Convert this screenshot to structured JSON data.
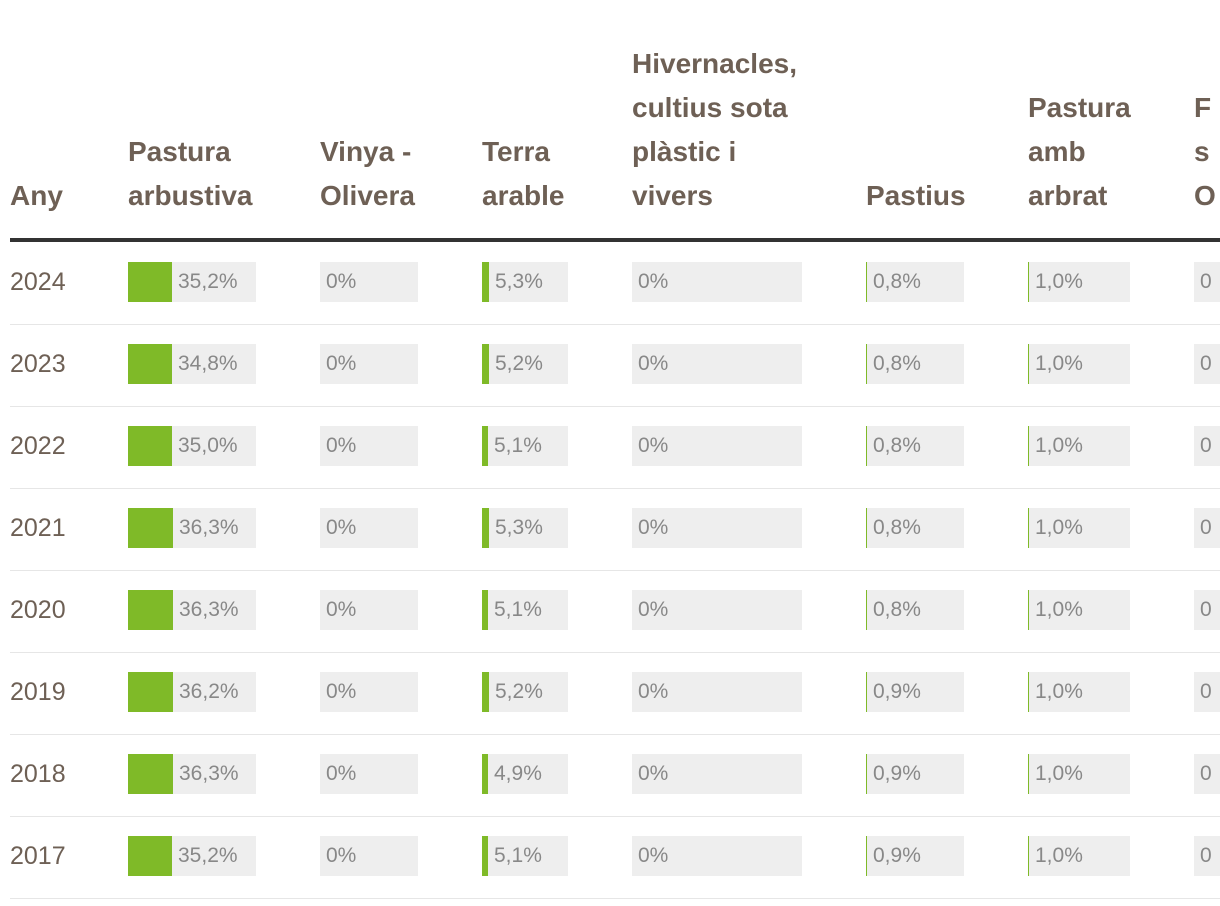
{
  "table": {
    "header": {
      "any": "Any",
      "columns": [
        "Pastura arbustiva",
        "Vinya - Olivera",
        "Terra arable",
        "Hivernacles, cultius sota plàstic i vivers",
        "Pastius",
        "Pastura amb arbrat",
        "F s O"
      ]
    },
    "rows": [
      {
        "year": "2024",
        "values": [
          "35,2%",
          "0%",
          "5,3%",
          "0%",
          "0,8%",
          "1,0%",
          "0"
        ]
      },
      {
        "year": "2023",
        "values": [
          "34,8%",
          "0%",
          "5,2%",
          "0%",
          "0,8%",
          "1,0%",
          "0"
        ]
      },
      {
        "year": "2022",
        "values": [
          "35,0%",
          "0%",
          "5,1%",
          "0%",
          "0,8%",
          "1,0%",
          "0"
        ]
      },
      {
        "year": "2021",
        "values": [
          "36,3%",
          "0%",
          "5,3%",
          "0%",
          "0,8%",
          "1,0%",
          "0"
        ]
      },
      {
        "year": "2020",
        "values": [
          "36,3%",
          "0%",
          "5,1%",
          "0%",
          "0,8%",
          "1,0%",
          "0"
        ]
      },
      {
        "year": "2019",
        "values": [
          "36,2%",
          "0%",
          "5,2%",
          "0%",
          "0,9%",
          "1,0%",
          "0"
        ]
      },
      {
        "year": "2018",
        "values": [
          "36,3%",
          "0%",
          "4,9%",
          "0%",
          "0,9%",
          "1,0%",
          "0"
        ]
      },
      {
        "year": "2017",
        "values": [
          "35,2%",
          "0%",
          "5,1%",
          "0%",
          "0,9%",
          "1,0%",
          "0"
        ]
      }
    ]
  },
  "colors": {
    "bar": "#7fba28",
    "bar_background": "#eeeeee",
    "header_text": "#6e6055",
    "value_text": "#888888"
  }
}
